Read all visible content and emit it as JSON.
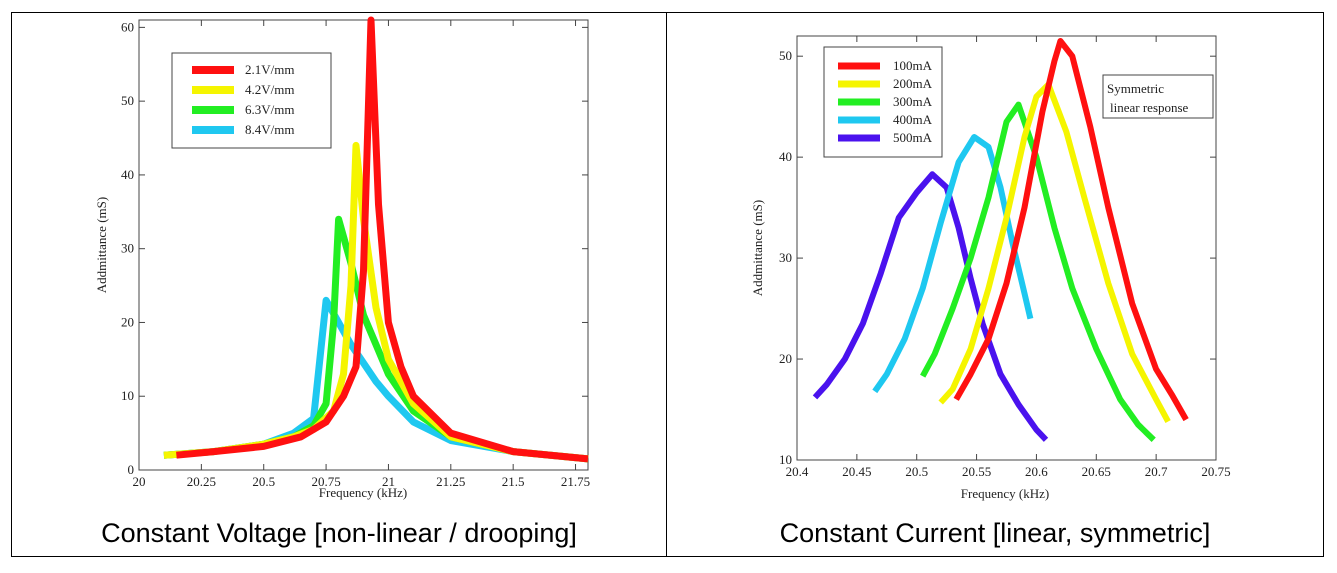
{
  "captions": {
    "left": "Constant Voltage [non-linear / drooping]",
    "right": "Constant Current [linear, symmetric]"
  },
  "chart_data": [
    {
      "type": "line",
      "title": "",
      "xlabel": "Frequency (kHz)",
      "ylabel": "Addmittance (mS)",
      "xlim": [
        20,
        21.8
      ],
      "ylim": [
        0,
        61
      ],
      "xticks": [
        20,
        20.25,
        20.5,
        20.75,
        21,
        21.25,
        21.5,
        21.75
      ],
      "xtick_labels": [
        "20",
        "20.25",
        "20.5",
        "20.75",
        "21",
        "21.25",
        "21.5",
        "21.75"
      ],
      "yticks": [
        0,
        10,
        20,
        30,
        40,
        50,
        60
      ],
      "ytick_labels": [
        "0",
        "10",
        "20",
        "30",
        "40",
        "50",
        "60"
      ],
      "grid": false,
      "legend_position": "top-left",
      "series": [
        {
          "name": "8.4V/mm",
          "color": "#1fc8f0",
          "x": [
            20.1,
            20.3,
            20.5,
            20.62,
            20.7,
            20.75,
            20.8,
            20.85,
            20.9,
            20.95,
            21.0,
            21.1,
            21.25,
            21.5,
            21.8
          ],
          "y": [
            2,
            2.5,
            3.5,
            5,
            7,
            23,
            20,
            17,
            14.5,
            12,
            10,
            6.5,
            4,
            2.5,
            1.5
          ]
        },
        {
          "name": "6.3V/mm",
          "color": "#22ee22",
          "x": [
            20.1,
            20.3,
            20.5,
            20.62,
            20.7,
            20.75,
            20.78,
            20.8,
            20.85,
            20.9,
            20.95,
            21.0,
            21.1,
            21.25,
            21.5,
            21.8
          ],
          "y": [
            2,
            2.5,
            3.5,
            4.5,
            6,
            9,
            20,
            34,
            28,
            21,
            17,
            13,
            8,
            4.5,
            2.5,
            1.5
          ]
        },
        {
          "name": "4.2V/mm",
          "color": "#f5f500",
          "x": [
            20.1,
            20.3,
            20.5,
            20.62,
            20.7,
            20.78,
            20.82,
            20.85,
            20.87,
            20.9,
            20.95,
            21.0,
            21.1,
            21.25,
            21.5,
            21.8
          ],
          "y": [
            2,
            2.5,
            3.5,
            4.5,
            5.5,
            8,
            13,
            25,
            44,
            34,
            22,
            15,
            9,
            4.5,
            2.5,
            1.5
          ]
        },
        {
          "name": "2.1V/mm",
          "color": "#ff1010",
          "x": [
            20.15,
            20.3,
            20.5,
            20.65,
            20.75,
            20.82,
            20.87,
            20.9,
            20.93,
            20.96,
            21.0,
            21.05,
            21.1,
            21.25,
            21.5,
            21.8
          ],
          "y": [
            2,
            2.5,
            3.2,
            4.5,
            6.5,
            10,
            14,
            27,
            61,
            36,
            20,
            14,
            10,
            5,
            2.5,
            1.5
          ]
        }
      ]
    },
    {
      "type": "line",
      "title": "",
      "xlabel": "Frequency (kHz)",
      "ylabel": "Addmittance (mS)",
      "xlim": [
        20.4,
        20.75
      ],
      "ylim": [
        10,
        52
      ],
      "xticks": [
        20.4,
        20.45,
        20.5,
        20.55,
        20.6,
        20.65,
        20.7,
        20.75
      ],
      "xtick_labels": [
        "20.4",
        "20.45",
        "20.5",
        "20.55",
        "20.6",
        "20.65",
        "20.7",
        "20.75"
      ],
      "yticks": [
        10,
        20,
        30,
        40,
        50
      ],
      "ytick_labels": [
        "10",
        "20",
        "30",
        "40",
        "50"
      ],
      "grid": false,
      "legend_position": "top-left",
      "annotation": [
        "Symmetric",
        "linear response"
      ],
      "series": [
        {
          "name": "500mA",
          "color": "#4a12ee",
          "x": [
            20.415,
            20.425,
            20.44,
            20.455,
            20.47,
            20.485,
            20.5,
            20.513,
            20.525,
            20.535,
            20.545,
            20.555,
            20.57,
            20.585,
            20.6,
            20.608
          ],
          "y": [
            16.2,
            17.5,
            20,
            23.5,
            28.5,
            34,
            36.5,
            38.3,
            37,
            33,
            28,
            23.5,
            18.5,
            15.5,
            13,
            12
          ]
        },
        {
          "name": "400mA",
          "color": "#1ec8f0",
          "x": [
            20.465,
            20.475,
            20.49,
            20.505,
            20.52,
            20.535,
            20.548,
            20.56,
            20.57,
            20.58,
            20.59,
            20.595
          ],
          "y": [
            16.8,
            18.5,
            22,
            27,
            33.5,
            39.5,
            42,
            41,
            37,
            31.5,
            26.5,
            24
          ]
        },
        {
          "name": "300mA",
          "color": "#22ee22",
          "x": [
            20.505,
            20.515,
            20.53,
            20.545,
            20.56,
            20.575,
            20.585,
            20.6,
            20.615,
            20.63,
            20.65,
            20.67,
            20.685,
            20.698
          ],
          "y": [
            18.3,
            20.5,
            25,
            30,
            36,
            43.5,
            45.2,
            40,
            33,
            27,
            21,
            16,
            13.5,
            12
          ]
        },
        {
          "name": "200mA",
          "color": "#f5f500",
          "x": [
            20.52,
            20.53,
            20.545,
            20.56,
            20.575,
            20.59,
            20.6,
            20.61,
            20.625,
            20.64,
            20.66,
            20.68,
            20.7,
            20.71
          ],
          "y": [
            15.7,
            17,
            21,
            27,
            34,
            42,
            46,
            47.2,
            42.5,
            36,
            27.5,
            20.5,
            16,
            13.8
          ]
        },
        {
          "name": "100mA",
          "color": "#ff1010",
          "x": [
            20.533,
            20.545,
            20.56,
            20.575,
            20.59,
            20.605,
            20.615,
            20.62,
            20.63,
            20.645,
            20.66,
            20.68,
            20.7,
            20.713,
            20.725
          ],
          "y": [
            16,
            18.5,
            22,
            27.5,
            35,
            44.5,
            49.5,
            51.5,
            50,
            43,
            35,
            25.5,
            19,
            16.5,
            14
          ]
        }
      ]
    }
  ]
}
